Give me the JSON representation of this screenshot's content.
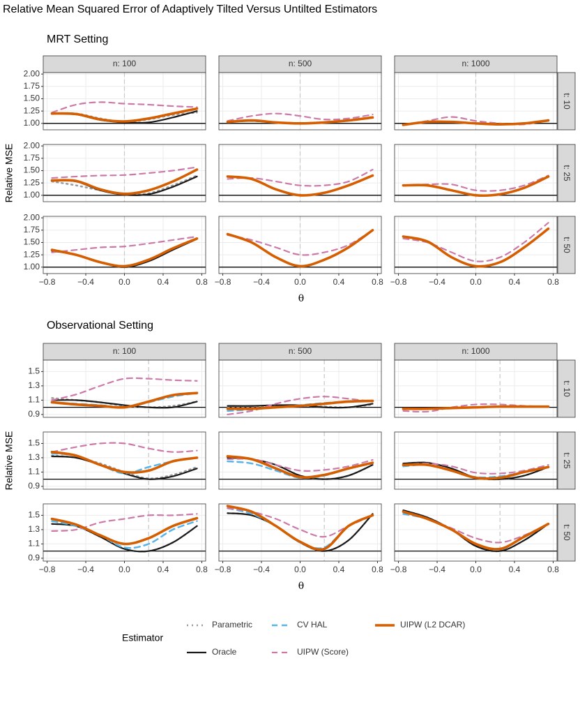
{
  "title": "Relative Mean Squared Error of Adaptively Tilted Versus Untilted Estimators",
  "legend": {
    "title": "Estimator",
    "series": [
      {
        "name": "Parametric",
        "color": "#999999",
        "dash": "2,5",
        "width": 2.5
      },
      {
        "name": "Oracle",
        "color": "#1a1a1a",
        "dash": "none",
        "width": 2.2
      },
      {
        "name": "CV HAL",
        "color": "#56B4E9",
        "dash": "8,6",
        "width": 2.5
      },
      {
        "name": "UIPW (Score)",
        "color": "#CC79A7",
        "dash": "8,6",
        "width": 2.2
      },
      {
        "name": "UIPW (L2 DCAR)",
        "color": "#D55E00",
        "dash": "none",
        "width": 3.6
      }
    ]
  },
  "chart_data": [
    {
      "type": "line",
      "title": "MRT Setting",
      "xlabel": "θ",
      "ylabel": "Relative MSE",
      "col_labels": [
        "n: 100",
        "n: 500",
        "n: 1000"
      ],
      "row_labels": [
        "t: 10",
        "t: 25",
        "t: 50"
      ],
      "xlim": [
        -0.84,
        0.84
      ],
      "xticks": [
        {
          "value": -0.8,
          "label": "−0.8"
        },
        {
          "value": -0.4,
          "label": "−0.4"
        },
        {
          "value": 0,
          "label": "0.0"
        },
        0.4,
        0.8
      ],
      "ylim": [
        0.87,
        2.03
      ],
      "yticks": [
        {
          "value": 1,
          "label": "1.00"
        },
        {
          "value": 1.25,
          "label": "1.25"
        },
        {
          "value": 1.5,
          "label": "1.50"
        },
        {
          "value": 1.75,
          "label": "1.75"
        },
        {
          "value": 2,
          "label": "2.00"
        }
      ],
      "grid": true,
      "vline": 0,
      "hline": 1,
      "x": [
        -0.75,
        -0.5,
        -0.25,
        0,
        0.25,
        0.5,
        0.75
      ],
      "panels": [
        [
          [
            [
              1.2,
              1.2,
              1.1,
              1.03,
              1.08,
              1.17,
              1.22
            ],
            [
              1.2,
              1.18,
              1.07,
              1.02,
              1.02,
              1.12,
              1.25
            ],
            [
              1.2,
              1.19,
              1.08,
              1.04,
              1.1,
              1.2,
              1.3
            ],
            [
              1.22,
              1.38,
              1.43,
              1.4,
              1.38,
              1.35,
              1.33
            ],
            [
              1.2,
              1.19,
              1.08,
              1.04,
              1.1,
              1.2,
              1.3
            ]
          ],
          [
            [
              1.03,
              1.05,
              1.02,
              1.0,
              1.02,
              1.06,
              1.12
            ],
            [
              1.03,
              1.05,
              1.02,
              1.0,
              1.02,
              1.06,
              1.12
            ],
            [
              1.03,
              1.06,
              1.02,
              1.0,
              1.02,
              1.06,
              1.12
            ],
            [
              1.05,
              1.15,
              1.2,
              1.15,
              1.08,
              1.1,
              1.18
            ],
            [
              1.03,
              1.06,
              1.02,
              1.0,
              1.02,
              1.06,
              1.12
            ]
          ],
          [
            [
              0.97,
              1.03,
              1.03,
              1.0,
              0.98,
              1.0,
              1.06
            ],
            [
              0.97,
              1.03,
              1.03,
              1.0,
              0.98,
              1.0,
              1.06
            ],
            [
              0.97,
              1.03,
              1.03,
              1.0,
              0.98,
              1.0,
              1.06
            ],
            [
              0.97,
              1.05,
              1.13,
              1.05,
              1.0,
              0.98,
              1.07
            ],
            [
              0.97,
              1.03,
              1.03,
              1.0,
              0.98,
              1.0,
              1.06
            ]
          ]
        ],
        [
          [
            [
              1.28,
              1.2,
              1.1,
              1.02,
              1.04,
              1.2,
              1.4
            ],
            [
              1.3,
              1.28,
              1.1,
              1.01,
              1.02,
              1.17,
              1.38
            ],
            [
              1.3,
              1.29,
              1.12,
              1.03,
              1.1,
              1.28,
              1.52
            ],
            [
              1.35,
              1.38,
              1.4,
              1.41,
              1.45,
              1.5,
              1.57
            ],
            [
              1.3,
              1.29,
              1.12,
              1.03,
              1.1,
              1.28,
              1.52
            ]
          ],
          [
            [
              1.38,
              1.33,
              1.12,
              1.0,
              1.05,
              1.2,
              1.4
            ],
            [
              1.38,
              1.33,
              1.12,
              1.0,
              1.05,
              1.2,
              1.4
            ],
            [
              1.38,
              1.33,
              1.12,
              1.0,
              1.05,
              1.2,
              1.4
            ],
            [
              1.33,
              1.35,
              1.28,
              1.2,
              1.2,
              1.28,
              1.52
            ],
            [
              1.38,
              1.33,
              1.12,
              1.0,
              1.05,
              1.2,
              1.4
            ]
          ],
          [
            [
              1.2,
              1.2,
              1.1,
              1.0,
              1.02,
              1.15,
              1.38
            ],
            [
              1.2,
              1.2,
              1.1,
              1.0,
              1.02,
              1.15,
              1.38
            ],
            [
              1.2,
              1.2,
              1.1,
              1.0,
              1.02,
              1.15,
              1.38
            ],
            [
              1.2,
              1.22,
              1.22,
              1.1,
              1.1,
              1.2,
              1.4
            ],
            [
              1.2,
              1.2,
              1.1,
              1.0,
              1.02,
              1.15,
              1.38
            ]
          ]
        ],
        [
          [
            [
              1.35,
              1.25,
              1.1,
              1.02,
              1.15,
              1.38,
              1.58
            ],
            [
              1.33,
              1.25,
              1.1,
              1.0,
              1.12,
              1.35,
              1.57
            ],
            [
              1.35,
              1.25,
              1.1,
              1.02,
              1.15,
              1.38,
              1.58
            ],
            [
              1.3,
              1.35,
              1.4,
              1.42,
              1.48,
              1.55,
              1.62
            ],
            [
              1.35,
              1.25,
              1.1,
              1.02,
              1.15,
              1.38,
              1.58
            ]
          ],
          [
            [
              1.67,
              1.5,
              1.2,
              1.02,
              1.15,
              1.4,
              1.75
            ],
            [
              1.67,
              1.5,
              1.2,
              1.02,
              1.15,
              1.4,
              1.75
            ],
            [
              1.67,
              1.5,
              1.2,
              1.02,
              1.15,
              1.4,
              1.75
            ],
            [
              1.65,
              1.55,
              1.4,
              1.25,
              1.3,
              1.45,
              1.75
            ],
            [
              1.67,
              1.5,
              1.2,
              1.02,
              1.15,
              1.4,
              1.75
            ]
          ],
          [
            [
              1.62,
              1.52,
              1.2,
              1.02,
              1.1,
              1.4,
              1.78
            ],
            [
              1.62,
              1.52,
              1.2,
              1.02,
              1.1,
              1.4,
              1.78
            ],
            [
              1.62,
              1.52,
              1.2,
              1.02,
              1.1,
              1.4,
              1.78
            ],
            [
              1.58,
              1.5,
              1.3,
              1.12,
              1.2,
              1.5,
              1.9
            ],
            [
              1.62,
              1.52,
              1.2,
              1.02,
              1.1,
              1.4,
              1.78
            ]
          ]
        ]
      ]
    },
    {
      "type": "line",
      "title": "Observational Setting",
      "xlabel": "θ",
      "ylabel": "Relative MSE",
      "col_labels": [
        "n: 100",
        "n: 500",
        "n: 1000"
      ],
      "row_labels": [
        "t: 10",
        "t: 25",
        "t: 50"
      ],
      "xlim": [
        -0.84,
        0.84
      ],
      "xticks": [
        {
          "value": -0.8,
          "label": "−0.8"
        },
        {
          "value": -0.4,
          "label": "−0.4"
        },
        {
          "value": 0,
          "label": "0.0"
        },
        0.4,
        0.8
      ],
      "ylim": [
        0.86,
        1.66
      ],
      "yticks": [
        0.9,
        1.1,
        1.3,
        1.5
      ],
      "grid": true,
      "vline": 0.25,
      "hline": 1,
      "x": [
        -0.75,
        -0.5,
        -0.25,
        0,
        0.25,
        0.5,
        0.75
      ],
      "panels": [
        [
          [
            [
              1.13,
              1.1,
              1.07,
              1.02,
              1.0,
              1.02,
              1.08
            ],
            [
              1.1,
              1.1,
              1.07,
              1.03,
              1.0,
              1.0,
              1.08
            ],
            [
              1.07,
              1.05,
              1.03,
              1.0,
              1.07,
              1.15,
              1.2
            ],
            [
              1.1,
              1.18,
              1.3,
              1.4,
              1.4,
              1.38,
              1.37
            ],
            [
              1.07,
              1.04,
              1.02,
              1.0,
              1.08,
              1.17,
              1.2
            ]
          ],
          [
            [
              1.0,
              1.0,
              1.02,
              1.02,
              1.01,
              1.0,
              1.04
            ],
            [
              1.02,
              1.02,
              1.03,
              1.03,
              1.0,
              1.0,
              1.05
            ],
            [
              0.95,
              0.97,
              1.0,
              1.03,
              1.06,
              1.08,
              1.09
            ],
            [
              0.9,
              0.95,
              1.05,
              1.12,
              1.15,
              1.12,
              1.08
            ],
            [
              0.98,
              0.98,
              1.0,
              1.02,
              1.05,
              1.08,
              1.09
            ]
          ],
          [
            [
              0.98,
              0.98,
              0.99,
              1.0,
              1.01,
              1.01,
              1.01
            ],
            [
              0.98,
              0.98,
              0.99,
              1.0,
              1.01,
              1.01,
              1.01
            ],
            [
              0.98,
              0.98,
              0.99,
              1.0,
              1.01,
              1.01,
              1.01
            ],
            [
              0.95,
              0.94,
              1.0,
              1.04,
              1.04,
              1.02,
              1.01
            ],
            [
              0.98,
              0.98,
              0.99,
              1.0,
              1.01,
              1.01,
              1.01
            ]
          ]
        ],
        [
          [
            [
              1.33,
              1.3,
              1.22,
              1.1,
              1.01,
              1.06,
              1.17
            ],
            [
              1.32,
              1.3,
              1.2,
              1.08,
              1.0,
              1.04,
              1.15
            ],
            [
              1.36,
              1.33,
              1.2,
              1.08,
              1.17,
              1.25,
              1.3
            ],
            [
              1.38,
              1.45,
              1.5,
              1.5,
              1.43,
              1.38,
              1.4
            ],
            [
              1.38,
              1.33,
              1.2,
              1.1,
              1.12,
              1.25,
              1.3
            ]
          ],
          [
            [
              1.3,
              1.28,
              1.2,
              1.05,
              1.0,
              1.05,
              1.2
            ],
            [
              1.3,
              1.28,
              1.2,
              1.05,
              1.0,
              1.05,
              1.2
            ],
            [
              1.25,
              1.22,
              1.12,
              1.02,
              1.05,
              1.15,
              1.22
            ],
            [
              1.28,
              1.28,
              1.2,
              1.12,
              1.13,
              1.18,
              1.27
            ],
            [
              1.32,
              1.28,
              1.15,
              1.03,
              1.06,
              1.15,
              1.23
            ]
          ],
          [
            [
              1.22,
              1.23,
              1.15,
              1.02,
              1.0,
              1.05,
              1.17
            ],
            [
              1.22,
              1.23,
              1.15,
              1.02,
              1.0,
              1.05,
              1.17
            ],
            [
              1.18,
              1.2,
              1.12,
              1.03,
              1.04,
              1.1,
              1.17
            ],
            [
              1.2,
              1.22,
              1.18,
              1.09,
              1.08,
              1.12,
              1.2
            ],
            [
              1.2,
              1.2,
              1.12,
              1.02,
              1.02,
              1.1,
              1.17
            ]
          ]
        ],
        [
          [
            [
              1.38,
              1.35,
              1.2,
              1.03,
              1.0,
              1.12,
              1.35
            ],
            [
              1.38,
              1.35,
              1.2,
              1.03,
              1.0,
              1.12,
              1.35
            ],
            [
              1.42,
              1.35,
              1.22,
              1.05,
              1.1,
              1.3,
              1.42
            ],
            [
              1.28,
              1.3,
              1.4,
              1.45,
              1.5,
              1.5,
              1.52
            ],
            [
              1.45,
              1.37,
              1.22,
              1.1,
              1.18,
              1.35,
              1.46
            ]
          ],
          [
            [
              1.53,
              1.5,
              1.35,
              1.12,
              1.0,
              1.15,
              1.52
            ],
            [
              1.53,
              1.5,
              1.35,
              1.12,
              1.0,
              1.15,
              1.52
            ],
            [
              1.6,
              1.52,
              1.35,
              1.12,
              1.05,
              1.35,
              1.5
            ],
            [
              1.6,
              1.55,
              1.45,
              1.3,
              1.2,
              1.35,
              1.5
            ],
            [
              1.63,
              1.55,
              1.35,
              1.13,
              1.03,
              1.35,
              1.5
            ]
          ],
          [
            [
              1.57,
              1.47,
              1.3,
              1.07,
              1.0,
              1.15,
              1.38
            ],
            [
              1.57,
              1.47,
              1.3,
              1.07,
              1.0,
              1.15,
              1.38
            ],
            [
              1.52,
              1.45,
              1.3,
              1.1,
              1.02,
              1.2,
              1.38
            ],
            [
              1.55,
              1.45,
              1.32,
              1.18,
              1.12,
              1.22,
              1.38
            ],
            [
              1.55,
              1.45,
              1.3,
              1.1,
              1.03,
              1.2,
              1.38
            ]
          ]
        ]
      ]
    }
  ]
}
